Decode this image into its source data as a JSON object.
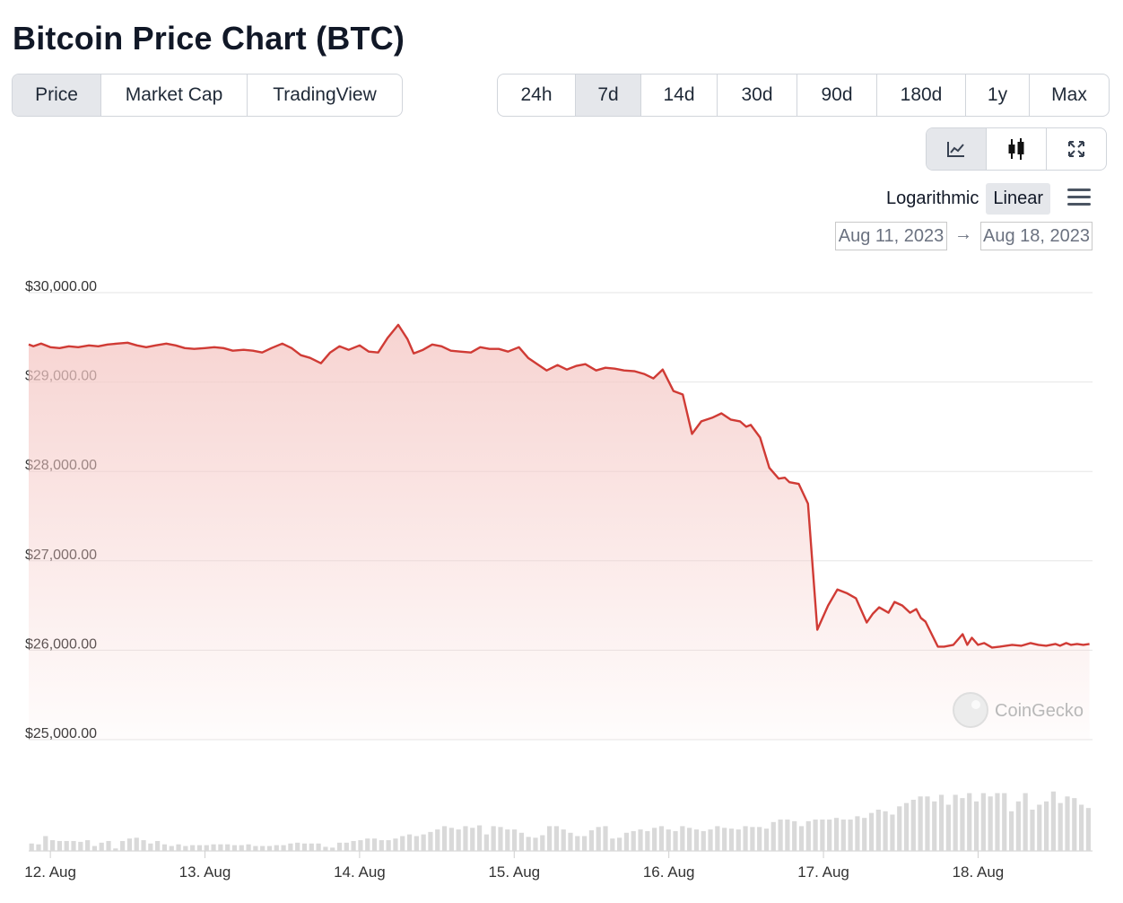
{
  "title": "Bitcoin Price Chart (BTC)",
  "tabs": [
    "Price",
    "Market Cap",
    "TradingView"
  ],
  "active_tab": 0,
  "ranges": [
    "24h",
    "7d",
    "14d",
    "30d",
    "90d",
    "180d",
    "1y",
    "Max"
  ],
  "active_range": 1,
  "views": [
    {
      "name": "line-chart-icon",
      "active": true
    },
    {
      "name": "candlestick-icon",
      "active": false
    },
    {
      "name": "fullscreen-icon",
      "active": false
    }
  ],
  "scale": {
    "log": "Logarithmic",
    "linear": "Linear",
    "active": "linear"
  },
  "date_from": "Aug 11, 2023",
  "date_arrow": "→",
  "date_to": "Aug 18, 2023",
  "watermark": "CoinGecko",
  "colors": {
    "line": "#d03b35",
    "fill": "#f5c9c6",
    "volume": "#d9d9d9",
    "grid": "#e6e6e6"
  },
  "chart_data": {
    "type": "line",
    "y_ticks": [
      "$30,000.00",
      "$29,000.00",
      "$28,000.00",
      "$27,000.00",
      "$26,000.00",
      "$25,000.00"
    ],
    "ylim": [
      25000,
      30000
    ],
    "x_ticks": [
      "12. Aug",
      "13. Aug",
      "14. Aug",
      "15. Aug",
      "16. Aug",
      "17. Aug",
      "18. Aug"
    ],
    "xlim": [
      11.86,
      18.74
    ],
    "series": [
      {
        "x": [
          11.86,
          11.89,
          11.94,
          12.0,
          12.06,
          12.12,
          12.18,
          12.25,
          12.31,
          12.37,
          12.43,
          12.5,
          12.56,
          12.62,
          12.68,
          12.75,
          12.81,
          12.87,
          12.93,
          13.0,
          13.06,
          13.12,
          13.18,
          13.25,
          13.31,
          13.37,
          13.43,
          13.5,
          13.56,
          13.62,
          13.68,
          13.75,
          13.81,
          13.87,
          13.93,
          14.0,
          14.06,
          14.12,
          14.18,
          14.25,
          14.31,
          14.35,
          14.41,
          14.47,
          14.53,
          14.59,
          14.65,
          14.72,
          14.78,
          14.84,
          14.9,
          14.96,
          15.03,
          15.09,
          15.15,
          15.21,
          15.28,
          15.34,
          15.4,
          15.46,
          15.53,
          15.59,
          15.65,
          15.71,
          15.78,
          15.84,
          15.9,
          15.96,
          16.03,
          16.09,
          16.15,
          16.21,
          16.28,
          16.34,
          16.4,
          16.46,
          16.5,
          16.53,
          16.59,
          16.65,
          16.71,
          16.75,
          16.78,
          16.84,
          16.9,
          16.96,
          17.03,
          17.09,
          17.15,
          17.21,
          17.28,
          17.32,
          17.36,
          17.42,
          17.46,
          17.51,
          17.56,
          17.6,
          17.63,
          17.66,
          17.7,
          17.74,
          17.78,
          17.84,
          17.9,
          17.93,
          17.96,
          18.0,
          18.04,
          18.09,
          18.14,
          18.18,
          18.22,
          18.28,
          18.34,
          18.39,
          18.44,
          18.5,
          18.53,
          18.57,
          18.6,
          18.64,
          18.68,
          18.72
        ],
        "y": [
          29420,
          29400,
          29430,
          29390,
          29380,
          29400,
          29390,
          29410,
          29400,
          29420,
          29430,
          29440,
          29410,
          29390,
          29410,
          29430,
          29410,
          29380,
          29370,
          29380,
          29390,
          29380,
          29350,
          29360,
          29350,
          29330,
          29380,
          29430,
          29380,
          29300,
          29270,
          29210,
          29330,
          29400,
          29360,
          29410,
          29340,
          29330,
          29490,
          29640,
          29480,
          29320,
          29360,
          29420,
          29400,
          29350,
          29340,
          29330,
          29390,
          29370,
          29370,
          29340,
          29390,
          29270,
          29200,
          29130,
          29190,
          29140,
          29180,
          29200,
          29130,
          29160,
          29150,
          29130,
          29120,
          29090,
          29040,
          29140,
          28900,
          28860,
          28420,
          28560,
          28600,
          28650,
          28580,
          28560,
          28500,
          28520,
          28380,
          28040,
          27920,
          27930,
          27880,
          27860,
          27640,
          26230,
          26500,
          26680,
          26640,
          26580,
          26310,
          26410,
          26480,
          26420,
          26540,
          26500,
          26420,
          26460,
          26360,
          26320,
          26180,
          26040,
          26040,
          26060,
          26180,
          26060,
          26140,
          26060,
          26080,
          26030,
          26040,
          26050,
          26060,
          26050,
          26080,
          26060,
          26050,
          26070,
          26050,
          26080,
          26060,
          26070,
          26060,
          26070
        ]
      }
    ],
    "volume": [
      0.09,
      0.08,
      0.18,
      0.13,
      0.12,
      0.12,
      0.12,
      0.11,
      0.13,
      0.06,
      0.1,
      0.12,
      0.03,
      0.12,
      0.15,
      0.16,
      0.13,
      0.09,
      0.12,
      0.08,
      0.06,
      0.08,
      0.06,
      0.07,
      0.07,
      0.07,
      0.08,
      0.08,
      0.08,
      0.07,
      0.07,
      0.08,
      0.06,
      0.06,
      0.06,
      0.07,
      0.07,
      0.09,
      0.1,
      0.09,
      0.09,
      0.09,
      0.05,
      0.04,
      0.1,
      0.1,
      0.12,
      0.13,
      0.15,
      0.15,
      0.13,
      0.13,
      0.15,
      0.18,
      0.2,
      0.18,
      0.2,
      0.23,
      0.26,
      0.3,
      0.28,
      0.26,
      0.3,
      0.28,
      0.31,
      0.2,
      0.3,
      0.29,
      0.26,
      0.26,
      0.22,
      0.17,
      0.16,
      0.19,
      0.3,
      0.3,
      0.26,
      0.22,
      0.18,
      0.18,
      0.25,
      0.29,
      0.3,
      0.15,
      0.16,
      0.22,
      0.24,
      0.26,
      0.24,
      0.28,
      0.3,
      0.26,
      0.24,
      0.3,
      0.28,
      0.26,
      0.24,
      0.26,
      0.3,
      0.28,
      0.27,
      0.26,
      0.3,
      0.29,
      0.29,
      0.27,
      0.35,
      0.38,
      0.38,
      0.36,
      0.3,
      0.36,
      0.38,
      0.38,
      0.38,
      0.4,
      0.38,
      0.38,
      0.42,
      0.4,
      0.46,
      0.5,
      0.48,
      0.44,
      0.54,
      0.58,
      0.62,
      0.66,
      0.66,
      0.6,
      0.68,
      0.56,
      0.68,
      0.64,
      0.7,
      0.6,
      0.7,
      0.66,
      0.7,
      0.7,
      0.48,
      0.6,
      0.7,
      0.5,
      0.56,
      0.6,
      0.72,
      0.58,
      0.66,
      0.64,
      0.56,
      0.52
    ]
  }
}
